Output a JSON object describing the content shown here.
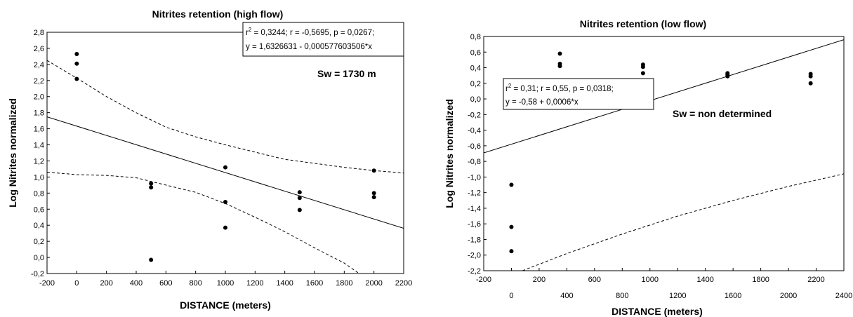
{
  "chart_data": [
    {
      "type": "scatter",
      "title": "Nitrites retention (high flow)",
      "xlabel": "DISTANCE (meters)",
      "ylabel": "Log Nitrites normalized",
      "xlim": [
        -200,
        2200
      ],
      "ylim": [
        -0.2,
        2.8
      ],
      "x_ticks": [
        "-200",
        "0",
        "200",
        "400",
        "600",
        "800",
        "1000",
        "1200",
        "1400",
        "1600",
        "1800",
        "2000",
        "2200"
      ],
      "y_ticks": [
        "-0,2",
        "0,0",
        "0,2",
        "0,4",
        "0,6",
        "0,8",
        "1,0",
        "1,2",
        "1,4",
        "1,6",
        "1,8",
        "2,0",
        "2,2",
        "2,4",
        "2,6",
        "2,8"
      ],
      "points": [
        {
          "x": 0,
          "y": 2.53
        },
        {
          "x": 0,
          "y": 2.41
        },
        {
          "x": 0,
          "y": 2.22
        },
        {
          "x": 500,
          "y": 0.92
        },
        {
          "x": 500,
          "y": 0.87
        },
        {
          "x": 500,
          "y": -0.03
        },
        {
          "x": 1000,
          "y": 1.12
        },
        {
          "x": 1000,
          "y": 0.69
        },
        {
          "x": 1000,
          "y": 0.37
        },
        {
          "x": 1500,
          "y": 0.81
        },
        {
          "x": 1500,
          "y": 0.74
        },
        {
          "x": 1500,
          "y": 0.59
        },
        {
          "x": 2000,
          "y": 1.08
        },
        {
          "x": 2000,
          "y": 0.8
        },
        {
          "x": 2000,
          "y": 0.75
        }
      ],
      "regression": {
        "intercept": 1.6326631,
        "slope": -0.000577603506
      },
      "ci_upper": [
        [
          -200,
          2.45
        ],
        [
          0,
          2.23
        ],
        [
          200,
          2.0
        ],
        [
          400,
          1.8
        ],
        [
          600,
          1.62
        ],
        [
          800,
          1.5
        ],
        [
          1000,
          1.4
        ],
        [
          1200,
          1.31
        ],
        [
          1400,
          1.22
        ],
        [
          1600,
          1.17
        ],
        [
          1800,
          1.12
        ],
        [
          2000,
          1.08
        ],
        [
          2200,
          1.05
        ]
      ],
      "ci_lower": [
        [
          -200,
          1.06
        ],
        [
          0,
          1.03
        ],
        [
          200,
          1.02
        ],
        [
          400,
          0.99
        ],
        [
          600,
          0.9
        ],
        [
          800,
          0.81
        ],
        [
          1000,
          0.67
        ],
        [
          1200,
          0.5
        ],
        [
          1400,
          0.32
        ],
        [
          1600,
          0.12
        ],
        [
          1800,
          -0.07
        ],
        [
          1900,
          -0.2
        ]
      ],
      "stats_line1_base": "r",
      "stats_line1_sup": "2",
      "stats_line1_rest": " = 0,3244;  r = -0,5695, p = 0,0267;",
      "stats_line2": "y = 1,6326631 - 0,000577603506*x",
      "sw_label": "Sw = 1730 m"
    },
    {
      "type": "scatter",
      "title": "Nitrites retention (low flow)",
      "xlabel": "DISTANCE (meters)",
      "ylabel": "Log Nitrites normalized",
      "xlim": [
        -200,
        2400
      ],
      "ylim": [
        -2.2,
        0.8
      ],
      "x_ticks_top": [
        "-200",
        "200",
        "600",
        "1000",
        "1400",
        "1800",
        "2200"
      ],
      "x_ticks_bottom": [
        "0",
        "400",
        "800",
        "1200",
        "1600",
        "2000",
        "2400"
      ],
      "y_ticks": [
        "-2,2",
        "-2,0",
        "-1,8",
        "-1,6",
        "-1,4",
        "-1,2",
        "-1,0",
        "-0,8",
        "-0,6",
        "-0,4",
        "-0,2",
        "0,0",
        "0,2",
        "0,4",
        "0,6",
        "0,8"
      ],
      "points": [
        {
          "x": 0,
          "y": -1.1
        },
        {
          "x": 0,
          "y": -1.64
        },
        {
          "x": 0,
          "y": -1.95
        },
        {
          "x": 350,
          "y": 0.58
        },
        {
          "x": 350,
          "y": 0.45
        },
        {
          "x": 350,
          "y": 0.42
        },
        {
          "x": 950,
          "y": 0.44
        },
        {
          "x": 950,
          "y": 0.41
        },
        {
          "x": 950,
          "y": 0.33
        },
        {
          "x": 1560,
          "y": 0.33
        },
        {
          "x": 1560,
          "y": 0.31
        },
        {
          "x": 1560,
          "y": 0.29
        },
        {
          "x": 2160,
          "y": 0.32
        },
        {
          "x": 2160,
          "y": 0.29
        },
        {
          "x": 2160,
          "y": 0.2
        }
      ],
      "regression": {
        "intercept": -0.58,
        "slope": 0.000558
      },
      "ci_lower": [
        [
          80,
          -2.2
        ],
        [
          400,
          -1.98
        ],
        [
          800,
          -1.73
        ],
        [
          1200,
          -1.5
        ],
        [
          1600,
          -1.3
        ],
        [
          2000,
          -1.12
        ],
        [
          2400,
          -0.96
        ]
      ],
      "stats_line1_base": "r",
      "stats_line1_sup": "2",
      "stats_line1_rest": " = 0,31;  r = 0,55, p = 0,0318;",
      "stats_line2": "y = -0,58 + 0,0006*x",
      "sw_label": "Sw = non determined"
    }
  ]
}
